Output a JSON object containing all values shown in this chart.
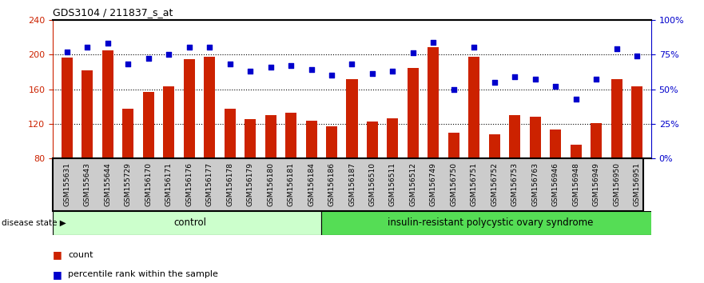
{
  "title": "GDS3104 / 211837_s_at",
  "samples": [
    "GSM155631",
    "GSM155643",
    "GSM155644",
    "GSM155729",
    "GSM156170",
    "GSM156171",
    "GSM156176",
    "GSM156177",
    "GSM156178",
    "GSM156179",
    "GSM156180",
    "GSM156181",
    "GSM156184",
    "GSM156186",
    "GSM156187",
    "GSM156510",
    "GSM156511",
    "GSM156512",
    "GSM156749",
    "GSM156750",
    "GSM156751",
    "GSM156752",
    "GSM156753",
    "GSM156763",
    "GSM156946",
    "GSM156948",
    "GSM156949",
    "GSM156950",
    "GSM156951"
  ],
  "bar_values": [
    196,
    182,
    205,
    137,
    157,
    163,
    195,
    197,
    137,
    125,
    130,
    133,
    124,
    117,
    172,
    123,
    126,
    184,
    208,
    110,
    197,
    108,
    130,
    128,
    113,
    96,
    121,
    172,
    163
  ],
  "dot_values": [
    77,
    80,
    83,
    68,
    72,
    75,
    80,
    80,
    68,
    63,
    66,
    67,
    64,
    60,
    68,
    61,
    63,
    76,
    84,
    50,
    80,
    55,
    59,
    57,
    52,
    43,
    57,
    79,
    74
  ],
  "n_control": 13,
  "ylim_left": [
    80,
    240
  ],
  "ylim_right": [
    0,
    100
  ],
  "yticks_left": [
    80,
    120,
    160,
    200,
    240
  ],
  "yticks_right": [
    0,
    25,
    50,
    75,
    100
  ],
  "bar_color": "#CC2200",
  "dot_color": "#0000CC",
  "control_label": "control",
  "disease_label": "insulin-resistant polycystic ovary syndrome",
  "control_bg": "#CCFFCC",
  "disease_bg": "#55DD55",
  "tick_bg": "#CCCCCC",
  "legend_bar": "count",
  "legend_dot": "percentile rank within the sample",
  "disease_state_label": "disease state"
}
